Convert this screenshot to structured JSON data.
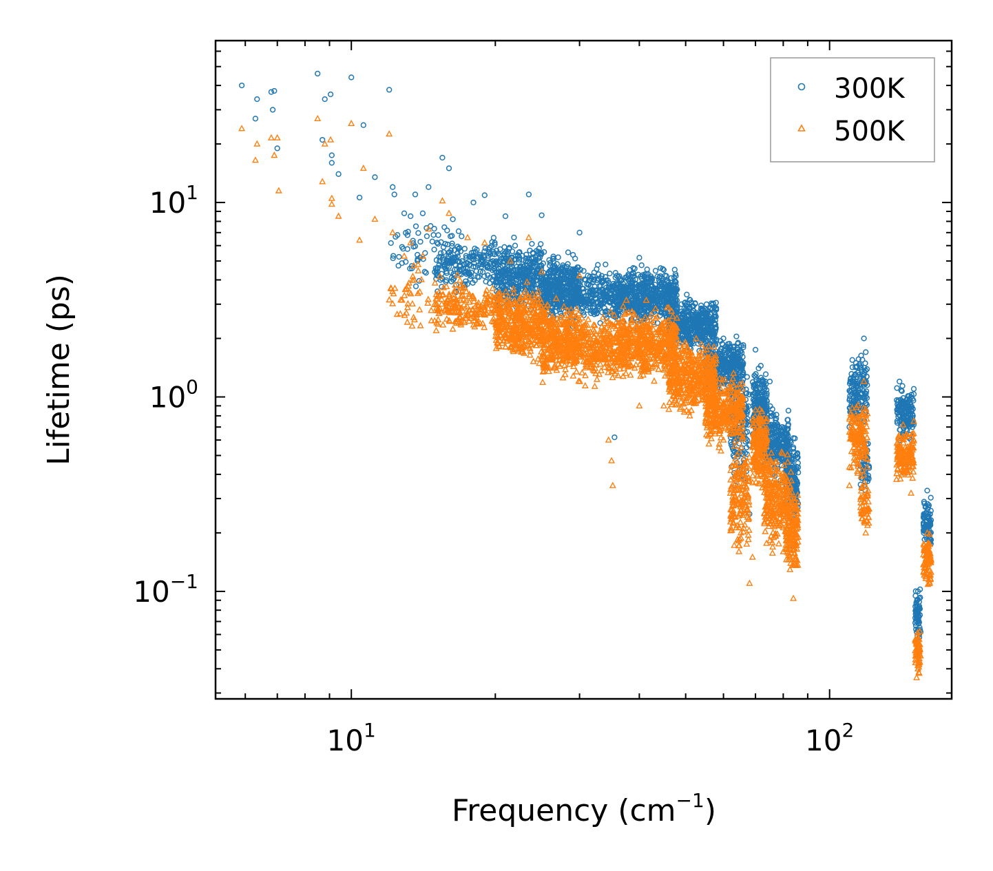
{
  "chart_data": {
    "type": "scatter",
    "title": "",
    "xlabel": "Frequency (cm",
    "xlabel_sup": "−1",
    "xlabel_end": ")",
    "ylabel": "Lifetime (ps)",
    "xscale": "log",
    "yscale": "log",
    "xlim": [
      5.2,
      180
    ],
    "ylim": [
      0.028,
      68
    ],
    "x_ticks": [
      {
        "value": 10,
        "base": "10",
        "exp": "1"
      },
      {
        "value": 100,
        "base": "10",
        "exp": "2"
      }
    ],
    "y_ticks": [
      {
        "value": 0.1,
        "base": "10",
        "exp": "−1"
      },
      {
        "value": 1,
        "base": "10",
        "exp": "0"
      },
      {
        "value": 10,
        "base": "10",
        "exp": "1"
      }
    ],
    "legend_position": "top-right",
    "series": [
      {
        "name": "300K",
        "color": "#1f77b4",
        "marker": "circle",
        "points": [
          [
            5.9,
            40
          ],
          [
            6.3,
            27
          ],
          [
            6.35,
            34
          ],
          [
            6.8,
            37
          ],
          [
            6.9,
            37.5
          ],
          [
            6.85,
            30
          ],
          [
            7.0,
            19
          ],
          [
            8.5,
            46
          ],
          [
            8.7,
            21
          ],
          [
            8.8,
            34
          ],
          [
            9.05,
            36
          ],
          [
            9.1,
            17.5
          ],
          [
            9.1,
            16
          ],
          [
            9.4,
            14
          ],
          [
            10.0,
            44
          ],
          [
            10.4,
            10.6
          ],
          [
            10.6,
            25
          ],
          [
            11.2,
            13.5
          ],
          [
            12.0,
            38
          ],
          [
            12.2,
            12
          ],
          [
            12.3,
            11
          ],
          [
            12.9,
            8.8
          ],
          [
            13.1,
            6.8
          ],
          [
            13.3,
            8.5
          ],
          [
            13.6,
            11
          ],
          [
            14.1,
            8.8
          ],
          [
            14.5,
            12
          ],
          [
            15.2,
            6.8
          ],
          [
            15.5,
            17
          ],
          [
            16.0,
            15
          ],
          [
            16.3,
            8.2
          ],
          [
            17.0,
            6.7
          ],
          [
            18.0,
            10
          ],
          [
            19.0,
            10.9
          ],
          [
            21.0,
            8.5
          ],
          [
            22.0,
            6
          ],
          [
            23.5,
            11
          ],
          [
            25.0,
            8.6
          ],
          [
            30.0,
            7
          ],
          [
            34.0,
            4.8
          ],
          [
            35.5,
            0.62
          ],
          [
            40.0,
            5.2
          ],
          [
            45.0,
            4.5
          ],
          [
            51.0,
            2.9
          ],
          [
            55,
            2.5
          ],
          [
            60,
            2.0
          ],
          [
            66,
            1.8
          ],
          [
            70,
            1.75
          ],
          [
            75,
            1.2
          ],
          [
            82,
            0.85
          ],
          [
            84,
            0.55
          ],
          [
            68,
            0.25
          ],
          [
            80,
            0.3
          ],
          [
            84,
            0.17
          ],
          [
            110,
            0.7
          ],
          [
            115,
            1.0
          ],
          [
            118,
            2.0
          ],
          [
            119,
            1.7
          ],
          [
            117,
            0.5
          ],
          [
            118,
            0.35
          ],
          [
            140,
            1.2
          ],
          [
            145,
            0.9
          ],
          [
            150,
            1.1
          ],
          [
            148,
            0.6
          ],
          [
            145,
            0.45
          ],
          [
            153,
            0.1
          ],
          [
            152,
            0.07
          ],
          [
            154,
            0.06
          ],
          [
            160,
            0.33
          ],
          [
            162,
            0.25
          ]
        ],
        "clusters": [
          [
            12,
            17,
            3.5,
            9,
            60
          ],
          [
            15,
            25,
            3.2,
            7,
            320
          ],
          [
            20,
            30,
            2.6,
            6,
            420
          ],
          [
            25,
            36,
            2.2,
            5,
            480
          ],
          [
            36,
            48,
            2.2,
            5,
            540
          ],
          [
            46,
            58,
            1.6,
            3.5,
            440
          ],
          [
            55,
            66,
            0.95,
            2.2,
            340
          ],
          [
            62,
            68,
            0.3,
            1.6,
            160
          ],
          [
            69,
            74,
            0.5,
            1.6,
            200
          ],
          [
            73,
            82,
            0.35,
            1.0,
            240
          ],
          [
            81,
            86,
            0.2,
            0.7,
            160
          ],
          [
            110,
            120,
            0.65,
            1.9,
            150
          ],
          [
            116,
            121,
            0.3,
            0.7,
            50
          ],
          [
            138,
            150,
            0.55,
            1.2,
            140
          ],
          [
            151,
            155,
            0.05,
            0.11,
            60
          ],
          [
            157,
            163,
            0.15,
            0.33,
            80
          ]
        ]
      },
      {
        "name": "500K",
        "color": "#ff7f0e",
        "marker": "triangle",
        "points": [
          [
            5.9,
            24
          ],
          [
            6.3,
            16.5
          ],
          [
            6.35,
            20
          ],
          [
            6.8,
            21.5
          ],
          [
            6.9,
            17.5
          ],
          [
            7.0,
            21.5
          ],
          [
            7.05,
            11.5
          ],
          [
            8.5,
            27
          ],
          [
            8.7,
            12.8
          ],
          [
            8.8,
            20
          ],
          [
            9.05,
            21
          ],
          [
            9.1,
            10.5
          ],
          [
            9.1,
            9.8
          ],
          [
            9.4,
            8.5
          ],
          [
            10.0,
            25.5
          ],
          [
            10.4,
            6.4
          ],
          [
            10.6,
            15
          ],
          [
            11.2,
            8.2
          ],
          [
            12.0,
            22.5
          ],
          [
            12.2,
            7
          ],
          [
            12.9,
            5.3
          ],
          [
            13.3,
            6.2
          ],
          [
            14.1,
            5.3
          ],
          [
            14.5,
            7.3
          ],
          [
            15.5,
            10.2
          ],
          [
            16.0,
            8.8
          ],
          [
            17.5,
            6.6
          ],
          [
            19.0,
            6.2
          ],
          [
            21.5,
            5
          ],
          [
            23.5,
            6.6
          ],
          [
            25.0,
            4.4
          ],
          [
            30.0,
            4.2
          ],
          [
            35.2,
            0.35
          ],
          [
            35.0,
            0.47
          ],
          [
            34.5,
            0.6
          ],
          [
            40.0,
            0.9
          ],
          [
            45.0,
            0.9
          ],
          [
            51,
            0.8
          ],
          [
            55,
            0.75
          ],
          [
            60,
            0.6
          ],
          [
            66,
            0.4
          ],
          [
            68,
            0.11
          ],
          [
            69,
            0.15
          ],
          [
            80,
            0.16
          ],
          [
            84,
            0.092
          ],
          [
            110,
            0.35
          ],
          [
            115,
            0.45
          ],
          [
            118,
            1.2
          ],
          [
            119,
            0.2
          ],
          [
            117,
            0.25
          ],
          [
            140,
            0.55
          ],
          [
            148,
            0.32
          ],
          [
            150,
            0.75
          ],
          [
            153,
            0.04
          ],
          [
            152,
            0.036
          ],
          [
            160,
            0.2
          ],
          [
            162,
            0.12
          ]
        ],
        "clusters": [
          [
            12,
            17,
            2.0,
            5.5,
            60
          ],
          [
            15,
            25,
            1.9,
            4.2,
            320
          ],
          [
            20,
            30,
            1.4,
            3.4,
            420
          ],
          [
            25,
            36,
            1.1,
            2.9,
            480
          ],
          [
            36,
            48,
            1.1,
            3.2,
            540
          ],
          [
            46,
            58,
            0.75,
            2.2,
            440
          ],
          [
            55,
            66,
            0.5,
            1.4,
            340
          ],
          [
            62,
            68,
            0.13,
            0.7,
            160
          ],
          [
            69,
            74,
            0.3,
            1.0,
            200
          ],
          [
            73,
            82,
            0.15,
            0.6,
            240
          ],
          [
            81,
            86,
            0.1,
            0.45,
            160
          ],
          [
            110,
            120,
            0.35,
            1.1,
            150
          ],
          [
            116,
            121,
            0.19,
            0.4,
            50
          ],
          [
            138,
            150,
            0.33,
            0.75,
            140
          ],
          [
            151,
            155,
            0.035,
            0.07,
            60
          ],
          [
            157,
            163,
            0.1,
            0.21,
            80
          ]
        ]
      }
    ]
  }
}
